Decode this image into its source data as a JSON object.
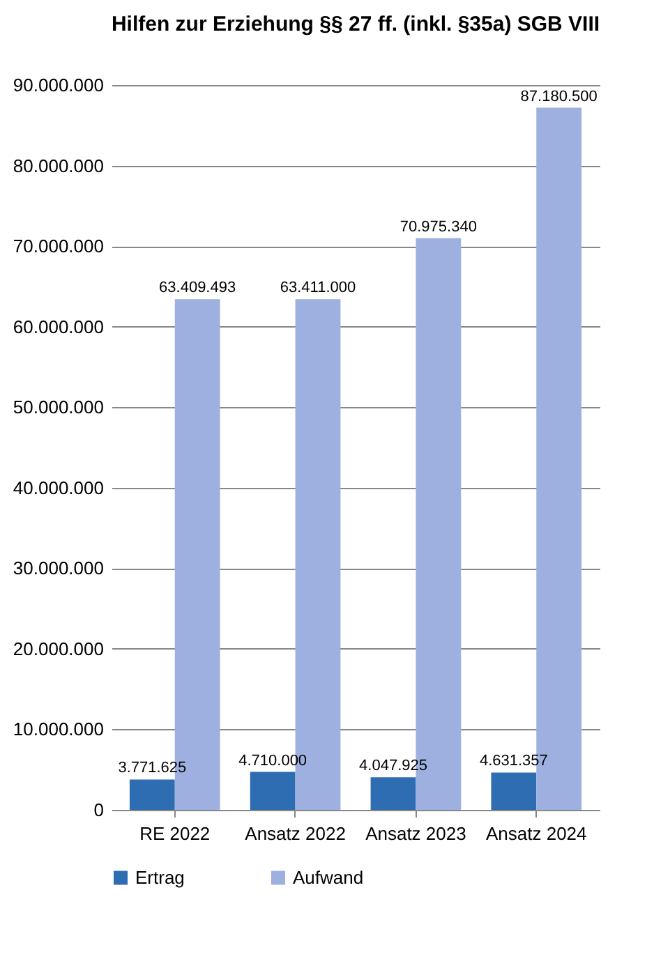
{
  "chart_data": {
    "type": "bar",
    "title": "Hilfen zur Erziehung §§ 27 ff. (inkl. §35a) SGB VIII",
    "categories": [
      "RE 2022",
      "Ansatz 2022",
      "Ansatz 2023",
      "Ansatz 2024"
    ],
    "series": [
      {
        "name": "Ertrag",
        "color": "#2f6db3",
        "values": [
          3771625,
          4710000,
          4047925,
          4631357
        ],
        "value_labels": [
          "3.771.625",
          "4.710.000",
          "4.047.925",
          "4.631.357"
        ]
      },
      {
        "name": "Aufwand",
        "color": "#9db0e0",
        "values": [
          63409493,
          63411000,
          70975340,
          87180500
        ],
        "value_labels": [
          "63.409.493",
          "63.411.000",
          "70.975.340",
          "87.180.500"
        ]
      }
    ],
    "ylim": [
      0,
      90000000
    ],
    "yticks": [
      0,
      {
        "value": 10000000,
        "label": "10.000.000"
      },
      {
        "value": 20000000,
        "label": "20.000.000"
      },
      {
        "value": 30000000,
        "label": "30.000.000"
      },
      {
        "value": 40000000,
        "label": "40.000.000"
      },
      {
        "value": 50000000,
        "label": "50.000.000"
      },
      {
        "value": 60000000,
        "label": "60.000.000"
      },
      {
        "value": 70000000,
        "label": "70.000.000"
      },
      {
        "value": 80000000,
        "label": "80.000.000"
      },
      {
        "value": 90000000,
        "label": "90.000.000"
      }
    ],
    "grid": "y",
    "legend": "bottom"
  }
}
